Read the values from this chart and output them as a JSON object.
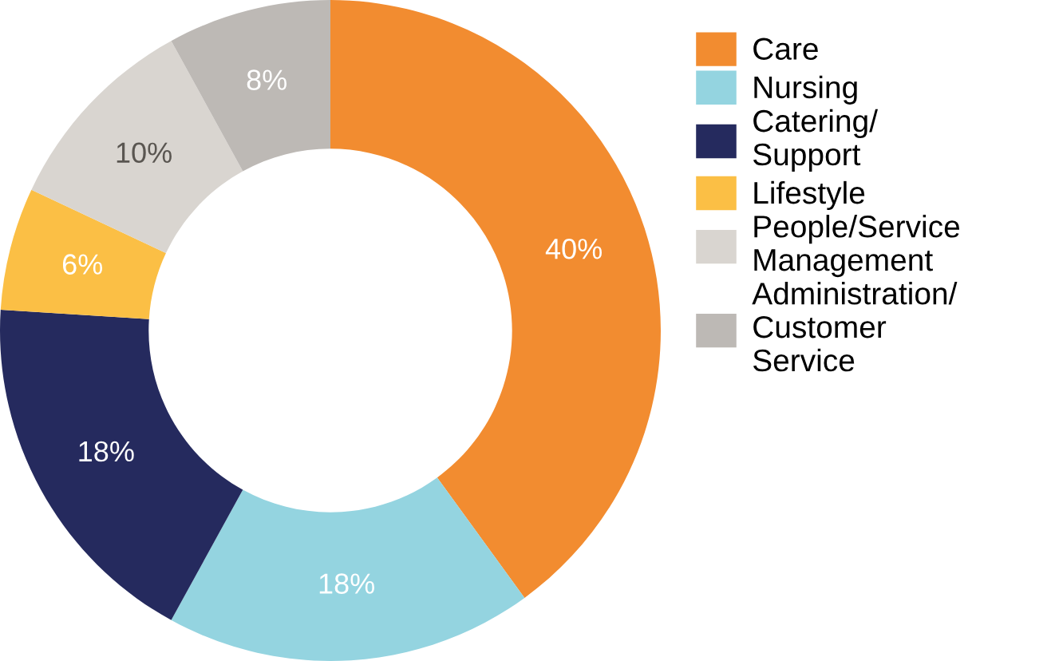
{
  "chart_data": {
    "type": "donut",
    "categories": [
      "Care",
      "Nursing",
      "Catering/\nSupport",
      "Lifestyle",
      "People/Service\nManagement",
      "Administration/\nCustomer\nService"
    ],
    "values": [
      40,
      18,
      18,
      6,
      10,
      8
    ],
    "colors": [
      "#f28c30",
      "#94d4e0",
      "#252a5e",
      "#fbbf45",
      "#d9d5d0",
      "#bdb9b5"
    ],
    "value_labels": [
      "40%",
      "18%",
      "18%",
      "6%",
      "10%",
      "8%"
    ],
    "legend": "right"
  }
}
